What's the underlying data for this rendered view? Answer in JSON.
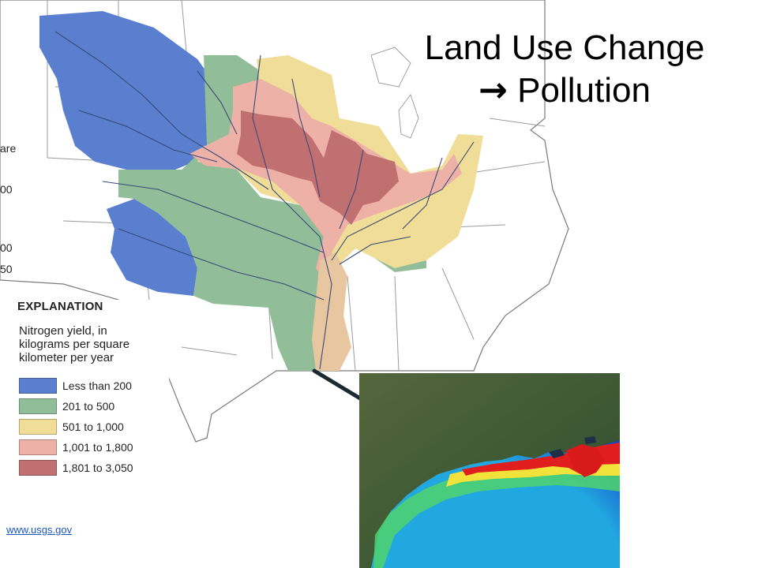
{
  "title": {
    "line1": "Land Use Change",
    "arrow": "→",
    "line2": "Pollution"
  },
  "legend": {
    "heading": "EXPLANATION",
    "description": "Nitrogen yield, in kilograms per square kilometer per year",
    "items": [
      {
        "label": "Less than 200",
        "color": "#5b7fcf"
      },
      {
        "label": "201 to 500",
        "color": "#91bd98"
      },
      {
        "label": "501 to 1,000",
        "color": "#f0dd98"
      },
      {
        "label": "1,001 to 1,800",
        "color": "#eeb1a8"
      },
      {
        "label": "1,801 to 3,050",
        "color": "#c07070"
      }
    ]
  },
  "edge_labels": [
    "are",
    "00",
    "00",
    "50"
  ],
  "source": "www.usgs.gov",
  "satellite": {
    "colors": {
      "land": "#3f5a35",
      "water_deep": "#1546c8",
      "water_mid": "#22a8e0",
      "bloom_green": "#4fd46c",
      "bloom_yellow": "#f2e33a",
      "bloom_red": "#e11e1e"
    }
  }
}
